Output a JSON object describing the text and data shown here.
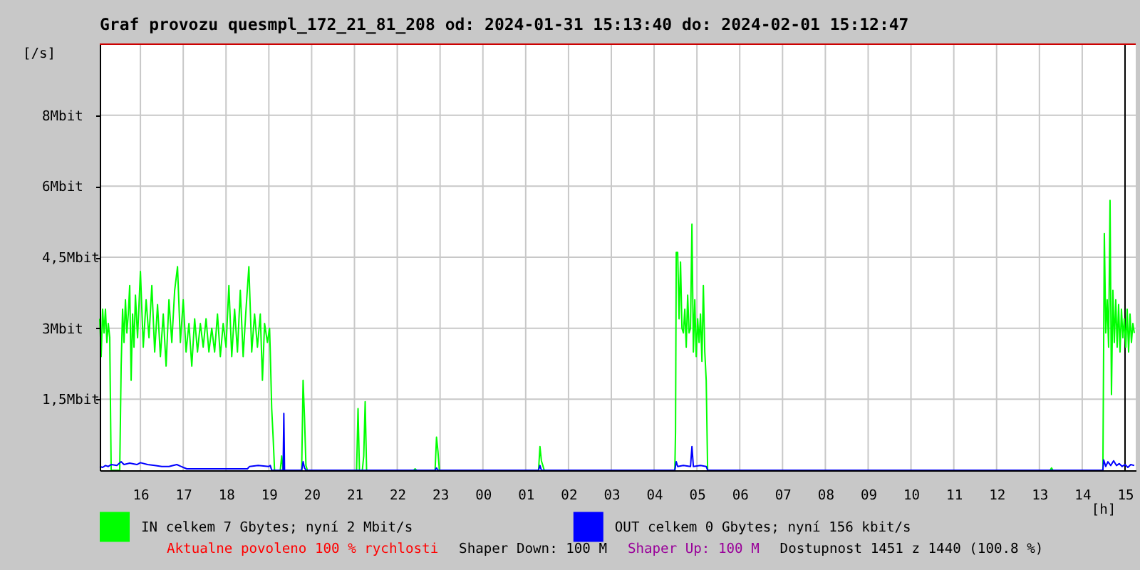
{
  "chart_data": {
    "type": "line",
    "title": "Graf provozu quesmpl_172_21_81_208 od: 2024-01-31 15:13:40 do: 2024-02-01 15:12:47",
    "xlabel": "[h]",
    "ylabel": "[/s]",
    "xlim": [
      "2024-01-31T15:03",
      "2024-02-01T15:15"
    ],
    "ylim": [
      0,
      9
    ],
    "xticks": [
      {
        "value": "2024-01-31T16:00",
        "label": "16"
      },
      {
        "value": "2024-01-31T17:00",
        "label": "17"
      },
      {
        "value": "2024-01-31T18:00",
        "label": "18"
      },
      {
        "value": "2024-01-31T19:00",
        "label": "19"
      },
      {
        "value": "2024-01-31T20:00",
        "label": "20"
      },
      {
        "value": "2024-01-31T21:00",
        "label": "21"
      },
      {
        "value": "2024-01-31T22:00",
        "label": "22"
      },
      {
        "value": "2024-01-31T23:00",
        "label": "23"
      },
      {
        "value": "2024-02-01T00:00",
        "label": "00"
      },
      {
        "value": "2024-02-01T01:00",
        "label": "01"
      },
      {
        "value": "2024-02-01T02:00",
        "label": "02"
      },
      {
        "value": "2024-02-01T03:00",
        "label": "03"
      },
      {
        "value": "2024-02-01T04:00",
        "label": "04"
      },
      {
        "value": "2024-02-01T05:00",
        "label": "05"
      },
      {
        "value": "2024-02-01T06:00",
        "label": "06"
      },
      {
        "value": "2024-02-01T07:00",
        "label": "07"
      },
      {
        "value": "2024-02-01T08:00",
        "label": "08"
      },
      {
        "value": "2024-02-01T09:00",
        "label": "09"
      },
      {
        "value": "2024-02-01T10:00",
        "label": "10"
      },
      {
        "value": "2024-02-01T11:00",
        "label": "11"
      },
      {
        "value": "2024-02-01T12:00",
        "label": "12"
      },
      {
        "value": "2024-02-01T13:00",
        "label": "13"
      },
      {
        "value": "2024-02-01T14:00",
        "label": "14"
      },
      {
        "value": "2024-02-01T15:00",
        "label": "15"
      }
    ],
    "yticks": [
      {
        "value": 1.5,
        "label": "1,5Mbit"
      },
      {
        "value": 3,
        "label": "3Mbit"
      },
      {
        "value": 4.5,
        "label": "4,5Mbit"
      },
      {
        "value": 6,
        "label": "6Mbit"
      },
      {
        "value": 7.5,
        "label": "8Mbit"
      }
    ],
    "grid": true,
    "legend": "bottom",
    "series": [
      {
        "name": "IN celkem 7 Gbytes; nyní 2 Mbit/s",
        "color": "#00ff00",
        "x": [
          "2024-01-31T15:03",
          "2024-01-31T15:05",
          "2024-01-31T15:07",
          "2024-01-31T15:09",
          "2024-01-31T15:11",
          "2024-01-31T15:13",
          "2024-01-31T15:15",
          "2024-01-31T15:17",
          "2024-01-31T15:19",
          "2024-01-31T15:31",
          "2024-01-31T15:33",
          "2024-01-31T15:35",
          "2024-01-31T15:37",
          "2024-01-31T15:39",
          "2024-01-31T15:41",
          "2024-01-31T15:43",
          "2024-01-31T15:45",
          "2024-01-31T15:47",
          "2024-01-31T15:49",
          "2024-01-31T15:51",
          "2024-01-31T15:53",
          "2024-01-31T15:56",
          "2024-01-31T16:00",
          "2024-01-31T16:04",
          "2024-01-31T16:08",
          "2024-01-31T16:12",
          "2024-01-31T16:16",
          "2024-01-31T16:20",
          "2024-01-31T16:24",
          "2024-01-31T16:28",
          "2024-01-31T16:32",
          "2024-01-31T16:36",
          "2024-01-31T16:40",
          "2024-01-31T16:44",
          "2024-01-31T16:48",
          "2024-01-31T16:52",
          "2024-01-31T16:56",
          "2024-01-31T17:00",
          "2024-01-31T17:04",
          "2024-01-31T17:08",
          "2024-01-31T17:12",
          "2024-01-31T17:16",
          "2024-01-31T17:20",
          "2024-01-31T17:24",
          "2024-01-31T17:28",
          "2024-01-31T17:32",
          "2024-01-31T17:36",
          "2024-01-31T17:40",
          "2024-01-31T17:44",
          "2024-01-31T17:48",
          "2024-01-31T17:52",
          "2024-01-31T17:56",
          "2024-01-31T18:00",
          "2024-01-31T18:04",
          "2024-01-31T18:08",
          "2024-01-31T18:12",
          "2024-01-31T18:16",
          "2024-01-31T18:20",
          "2024-01-31T18:24",
          "2024-01-31T18:28",
          "2024-01-31T18:32",
          "2024-01-31T18:36",
          "2024-01-31T18:40",
          "2024-01-31T18:44",
          "2024-01-31T18:48",
          "2024-01-31T18:51",
          "2024-01-31T18:54",
          "2024-01-31T18:58",
          "2024-01-31T19:01",
          "2024-01-31T19:02",
          "2024-01-31T19:04",
          "2024-01-31T19:06",
          "2024-01-31T19:08",
          "2024-01-31T19:16",
          "2024-01-31T19:18",
          "2024-01-31T19:20",
          "2024-01-31T19:46",
          "2024-01-31T19:48",
          "2024-01-31T19:50",
          "2024-01-31T19:52",
          "2024-01-31T19:54",
          "2024-01-31T21:03",
          "2024-01-31T21:05",
          "2024-01-31T21:07",
          "2024-01-31T21:11",
          "2024-01-31T21:13",
          "2024-01-31T21:15",
          "2024-01-31T21:17",
          "2024-01-31T22:23",
          "2024-01-31T22:25",
          "2024-01-31T22:27",
          "2024-01-31T22:53",
          "2024-01-31T22:55",
          "2024-01-31T22:57",
          "2024-01-31T22:59",
          "2024-02-01T01:18",
          "2024-02-01T01:20",
          "2024-02-01T01:22",
          "2024-02-01T01:24",
          "2024-02-01T01:26",
          "2024-02-01T04:29",
          "2024-02-01T04:30",
          "2024-02-01T04:31",
          "2024-02-01T04:33",
          "2024-02-01T04:35",
          "2024-02-01T04:37",
          "2024-02-01T04:39",
          "2024-02-01T04:41",
          "2024-02-01T04:43",
          "2024-02-01T04:45",
          "2024-02-01T04:47",
          "2024-02-01T04:49",
          "2024-02-01T04:51",
          "2024-02-01T04:53",
          "2024-02-01T04:55",
          "2024-02-01T04:57",
          "2024-02-01T04:59",
          "2024-02-01T05:01",
          "2024-02-01T05:03",
          "2024-02-01T05:05",
          "2024-02-01T05:07",
          "2024-02-01T05:09",
          "2024-02-01T05:11",
          "2024-02-01T05:13",
          "2024-02-01T05:15",
          "2024-02-01T13:15",
          "2024-02-01T13:17",
          "2024-02-01T13:19",
          "2024-02-01T14:29",
          "2024-02-01T14:30",
          "2024-02-01T14:31",
          "2024-02-01T14:33",
          "2024-02-01T14:35",
          "2024-02-01T14:37",
          "2024-02-01T14:39",
          "2024-02-01T14:41",
          "2024-02-01T14:43",
          "2024-02-01T14:45",
          "2024-02-01T14:47",
          "2024-02-01T14:49",
          "2024-02-01T14:51",
          "2024-02-01T14:53",
          "2024-02-01T14:55",
          "2024-02-01T14:57",
          "2024-02-01T14:59",
          "2024-02-01T15:01",
          "2024-02-01T15:03",
          "2024-02-01T15:05",
          "2024-02-01T15:07",
          "2024-02-01T15:09",
          "2024-02-01T15:11",
          "2024-02-01T15:13"
        ],
        "values": [
          3.2,
          2.4,
          3.4,
          2.9,
          3.4,
          2.7,
          3.1,
          2.8,
          0,
          0,
          2.2,
          3.4,
          2.7,
          3.6,
          2.9,
          3.3,
          3.9,
          1.9,
          3.3,
          2.6,
          3.7,
          2.8,
          4.2,
          2.6,
          3.6,
          2.8,
          3.9,
          2.5,
          3.5,
          2.4,
          3.3,
          2.2,
          3.6,
          2.7,
          3.8,
          4.3,
          2.7,
          3.6,
          2.5,
          3.1,
          2.2,
          3.2,
          2.5,
          3.1,
          2.6,
          3.2,
          2.5,
          3.0,
          2.5,
          3.3,
          2.4,
          3.1,
          2.6,
          3.9,
          2.4,
          3.4,
          2.5,
          3.8,
          2.4,
          3.4,
          4.3,
          2.5,
          3.3,
          2.6,
          3.3,
          1.9,
          3.1,
          2.7,
          3.0,
          2.5,
          1.3,
          0.7,
          0,
          0,
          0.3,
          0,
          0,
          1.9,
          1.1,
          0.1,
          0,
          0,
          1.3,
          0,
          0,
          0.3,
          1.45,
          0,
          0,
          0.03,
          0,
          0,
          0.7,
          0.4,
          0,
          0,
          0.5,
          0.2,
          0.1,
          0,
          0,
          0.8,
          4.6,
          4.6,
          3.2,
          4.4,
          3.0,
          2.9,
          3.4,
          2.6,
          3.7,
          2.9,
          3.0,
          5.2,
          2.5,
          3.6,
          2.4,
          3.2,
          2.7,
          3.3,
          2.3,
          3.9,
          2.5,
          1.9,
          0,
          0,
          0.05,
          0,
          0,
          2.5,
          5.0,
          2.9,
          3.6,
          2.6,
          5.7,
          1.6,
          3.8,
          2.7,
          3.6,
          2.6,
          3.5,
          2.5,
          3.4,
          2.8,
          3.2,
          2.6,
          3.4,
          2.5,
          3.3,
          2.7,
          3.1,
          2.9
        ]
      },
      {
        "name": "OUT celkem 0 Gbytes; nyní 156 kbit/s",
        "color": "#0000ff",
        "x": [
          "2024-01-31T15:03",
          "2024-01-31T15:07",
          "2024-01-31T15:11",
          "2024-01-31T15:15",
          "2024-01-31T15:19",
          "2024-01-31T15:27",
          "2024-01-31T15:33",
          "2024-01-31T15:37",
          "2024-01-31T15:45",
          "2024-01-31T15:55",
          "2024-01-31T16:00",
          "2024-01-31T16:10",
          "2024-01-31T16:20",
          "2024-01-31T16:30",
          "2024-01-31T16:40",
          "2024-01-31T16:51",
          "2024-01-31T17:00",
          "2024-01-31T17:05",
          "2024-01-31T17:30",
          "2024-01-31T18:00",
          "2024-01-31T18:30",
          "2024-01-31T18:33",
          "2024-01-31T18:45",
          "2024-01-31T19:00",
          "2024-01-31T19:02",
          "2024-01-31T19:04",
          "2024-01-31T19:20",
          "2024-01-31T19:21",
          "2024-01-31T19:22",
          "2024-01-31T19:46",
          "2024-01-31T19:48",
          "2024-01-31T19:50",
          "2024-01-31T19:52",
          "2024-01-31T22:53",
          "2024-01-31T22:55",
          "2024-01-31T22:57",
          "2024-02-01T01:18",
          "2024-02-01T01:20",
          "2024-02-01T01:22",
          "2024-02-01T04:29",
          "2024-02-01T04:31",
          "2024-02-01T04:33",
          "2024-02-01T04:41",
          "2024-02-01T04:51",
          "2024-02-01T04:53",
          "2024-02-01T04:55",
          "2024-02-01T05:05",
          "2024-02-01T05:13",
          "2024-02-01T05:15",
          "2024-02-01T14:29",
          "2024-02-01T14:30",
          "2024-02-01T14:33",
          "2024-02-01T14:36",
          "2024-02-01T14:40",
          "2024-02-01T14:44",
          "2024-02-01T14:48",
          "2024-02-01T14:52",
          "2024-02-01T14:56",
          "2024-02-01T15:00",
          "2024-02-01T15:04",
          "2024-02-01T15:08",
          "2024-02-01T15:13"
        ],
        "values": [
          0.08,
          0.06,
          0.1,
          0.08,
          0.12,
          0.1,
          0.18,
          0.12,
          0.15,
          0.12,
          0.16,
          0.12,
          0.1,
          0.08,
          0.08,
          0.12,
          0.06,
          0.03,
          0.03,
          0.03,
          0.03,
          0.08,
          0.1,
          0.08,
          0.1,
          0,
          0,
          1.2,
          0,
          0,
          0.18,
          0.05,
          0,
          0,
          0.05,
          0,
          0,
          0.1,
          0,
          0,
          0.18,
          0.08,
          0.1,
          0.08,
          0.5,
          0.08,
          0.1,
          0.08,
          0,
          0,
          0.22,
          0.08,
          0.18,
          0.1,
          0.2,
          0.1,
          0.14,
          0.08,
          0.12,
          0.06,
          0.12,
          0.1
        ]
      }
    ],
    "ref_lines": [
      {
        "axis": "x",
        "value": "2024-02-01T15:00",
        "color": "#000000"
      },
      {
        "axis": "y",
        "value": 9,
        "color": "#cc0000"
      }
    ],
    "annotations": [
      "Aktualne povoleno 100 % rychlosti",
      "Shaper Down: 100 M",
      "Shaper Up: 100 M",
      "Dostupnost 1451 z 1440 (100.8 %)"
    ]
  }
}
